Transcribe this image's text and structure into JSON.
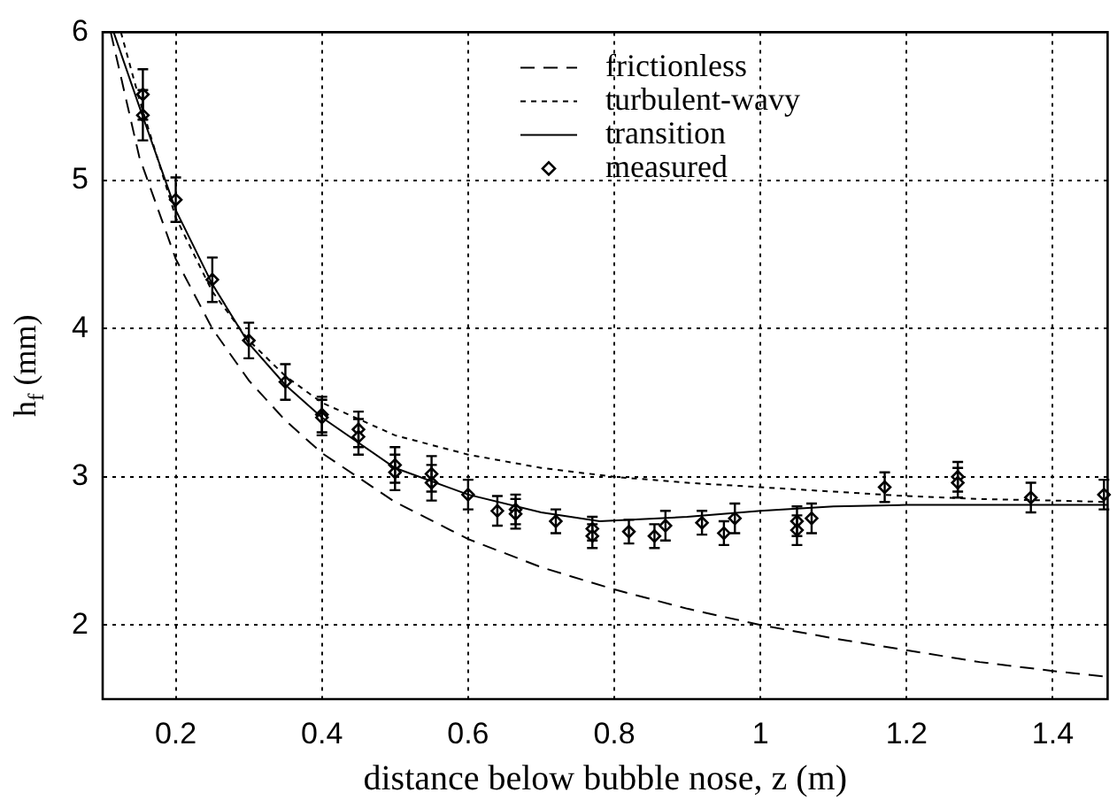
{
  "chart_data": {
    "type": "line",
    "xlabel": "distance below bubble nose, z (m)",
    "ylabel": "h$_{f}$ (mm)",
    "xlim": [
      0.1,
      1.475
    ],
    "ylim": [
      1.5,
      6
    ],
    "xticks": [
      0.2,
      0.4,
      0.6,
      0.8,
      1,
      1.2,
      1.4
    ],
    "yticks": [
      2,
      3,
      4,
      5,
      6
    ],
    "grid": true,
    "legend": "top right",
    "series": [
      {
        "name": "frictionless",
        "color": "#000000",
        "line_style": "dashed",
        "marker": "none",
        "x": [
          0.111,
          0.15,
          0.2,
          0.25,
          0.3,
          0.35,
          0.4,
          0.5,
          0.6,
          0.7,
          0.8,
          0.9,
          1.0,
          1.1,
          1.2,
          1.3,
          1.4,
          1.475
        ],
        "values": [
          6.0,
          5.16,
          4.47,
          4.0,
          3.65,
          3.38,
          3.16,
          2.83,
          2.58,
          2.39,
          2.24,
          2.11,
          2.0,
          1.91,
          1.83,
          1.75,
          1.69,
          1.65
        ]
      },
      {
        "name": "turbulent-wavy",
        "color": "#000000",
        "line_style": "dotted",
        "marker": "none",
        "x": [
          0.125,
          0.15,
          0.2,
          0.25,
          0.3,
          0.35,
          0.4,
          0.5,
          0.6,
          0.7,
          0.8,
          0.9,
          1.0,
          1.1,
          1.2,
          1.3,
          1.4,
          1.475
        ],
        "values": [
          6.0,
          5.55,
          4.75,
          4.25,
          3.92,
          3.68,
          3.5,
          3.28,
          3.15,
          3.06,
          3.0,
          2.96,
          2.93,
          2.9,
          2.87,
          2.85,
          2.84,
          2.83
        ]
      },
      {
        "name": "transition",
        "color": "#000000",
        "line_style": "solid",
        "marker": "none",
        "x": [
          0.115,
          0.15,
          0.2,
          0.25,
          0.3,
          0.35,
          0.4,
          0.5,
          0.6,
          0.7,
          0.78,
          0.9,
          1.0,
          1.1,
          1.2,
          1.3,
          1.475
        ],
        "values": [
          6.0,
          5.5,
          4.8,
          4.3,
          3.9,
          3.62,
          3.4,
          3.06,
          2.88,
          2.76,
          2.7,
          2.73,
          2.77,
          2.8,
          2.81,
          2.81,
          2.81
        ]
      },
      {
        "name": "measured",
        "type": "scatter",
        "color": "#000000",
        "marker": "diamond",
        "x": [
          0.155,
          0.155,
          0.2,
          0.25,
          0.3,
          0.35,
          0.4,
          0.4,
          0.45,
          0.45,
          0.5,
          0.5,
          0.55,
          0.55,
          0.6,
          0.64,
          0.665,
          0.665,
          0.72,
          0.77,
          0.77,
          0.82,
          0.855,
          0.87,
          0.92,
          0.95,
          0.965,
          1.05,
          1.05,
          1.07,
          1.17,
          1.27,
          1.27,
          1.37,
          1.47
        ],
        "values": [
          5.58,
          5.44,
          4.87,
          4.33,
          3.92,
          3.64,
          3.42,
          3.4,
          3.32,
          3.27,
          3.08,
          3.03,
          3.02,
          2.96,
          2.88,
          2.77,
          2.78,
          2.75,
          2.7,
          2.65,
          2.6,
          2.63,
          2.6,
          2.67,
          2.69,
          2.62,
          2.72,
          2.7,
          2.64,
          2.72,
          2.93,
          3.0,
          2.96,
          2.86,
          2.88
        ],
        "errors": [
          0.17,
          0.17,
          0.15,
          0.15,
          0.12,
          0.12,
          0.12,
          0.12,
          0.12,
          0.12,
          0.12,
          0.12,
          0.12,
          0.12,
          0.1,
          0.1,
          0.1,
          0.1,
          0.08,
          0.08,
          0.08,
          0.08,
          0.08,
          0.1,
          0.08,
          0.08,
          0.1,
          0.1,
          0.1,
          0.1,
          0.1,
          0.1,
          0.1,
          0.1,
          0.1
        ]
      }
    ]
  }
}
